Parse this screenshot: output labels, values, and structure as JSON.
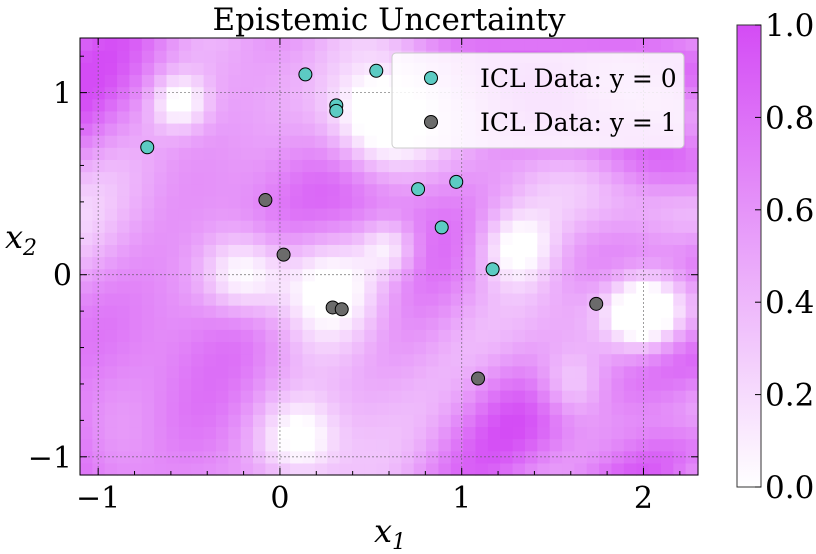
{
  "chart_data": {
    "type": "scatter",
    "title": "Epistemic Uncertainty",
    "xlabel": "x₁",
    "ylabel": "x₂",
    "xlim": [
      -1.1,
      2.3
    ],
    "ylim": [
      -1.1,
      1.3
    ],
    "x_ticks": [
      -1,
      0,
      1,
      2
    ],
    "x_tick_labels": [
      "−1",
      "0",
      "1",
      "2"
    ],
    "y_ticks": [
      -1,
      0,
      1
    ],
    "y_tick_labels": [
      "−1",
      "0",
      "1"
    ],
    "grid": true,
    "legend_position": "top-right",
    "background": {
      "type": "heatmap",
      "quantity": "epistemic uncertainty",
      "colormap": [
        "#ffffff",
        "#d44cf5"
      ],
      "vmin": 0.0,
      "vmax": 1.0
    },
    "colorbar": {
      "ticks": [
        0.0,
        0.2,
        0.4,
        0.6,
        0.8,
        1.0
      ],
      "tick_labels": [
        "0.0",
        "0.2",
        "0.4",
        "0.6",
        "0.8",
        "1.0"
      ]
    },
    "series": [
      {
        "name": "ICL Data: y = 0",
        "color": "#5ccbc3",
        "points": [
          [
            -0.73,
            0.7
          ],
          [
            0.14,
            1.1
          ],
          [
            0.31,
            0.93
          ],
          [
            0.31,
            0.9
          ],
          [
            0.53,
            1.12
          ],
          [
            0.76,
            0.47
          ],
          [
            0.97,
            0.51
          ],
          [
            0.89,
            0.26
          ],
          [
            1.17,
            0.03
          ]
        ]
      },
      {
        "name": "ICL Data: y = 1",
        "color": "#6b6b6b",
        "points": [
          [
            -0.08,
            0.41
          ],
          [
            0.02,
            0.11
          ],
          [
            0.29,
            -0.18
          ],
          [
            0.34,
            -0.19
          ],
          [
            1.09,
            -0.57
          ],
          [
            1.74,
            -0.16
          ]
        ]
      }
    ]
  }
}
